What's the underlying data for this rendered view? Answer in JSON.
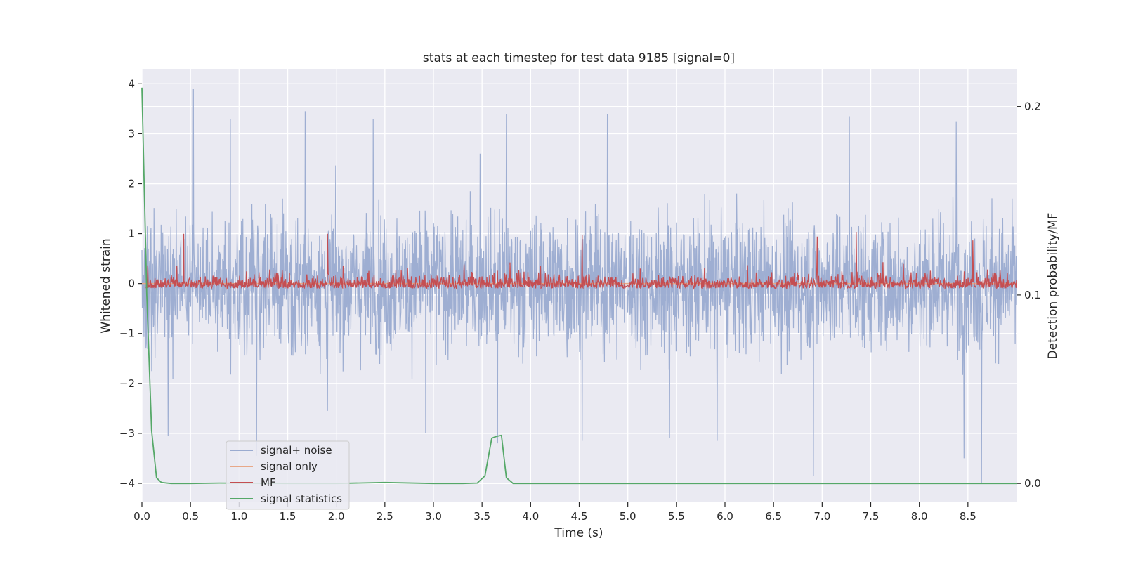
{
  "chart_data": {
    "type": "line",
    "title": "stats at each timestep for test data 9185 [signal=0]",
    "xlabel": "Time (s)",
    "ylabel": "Whitened strain",
    "y2label": "Detection probability/MF",
    "xlim": [
      0.0,
      9.0
    ],
    "ylim": [
      -4.38,
      4.3
    ],
    "y2lim": [
      -0.01,
      0.22
    ],
    "xticks": [
      0.0,
      0.5,
      1.0,
      1.5,
      2.0,
      2.5,
      3.0,
      3.5,
      4.0,
      4.5,
      5.0,
      5.5,
      6.0,
      6.5,
      7.0,
      7.5,
      8.0,
      8.5
    ],
    "xtick_labels": [
      "0.0",
      "0.5",
      "1.0",
      "1.5",
      "2.0",
      "2.5",
      "3.0",
      "3.5",
      "4.0",
      "4.5",
      "5.0",
      "5.5",
      "6.0",
      "6.5",
      "7.0",
      "7.5",
      "8.0",
      "8.5"
    ],
    "yticks": [
      -4,
      -3,
      -2,
      -1,
      0,
      1,
      2,
      3,
      4
    ],
    "ytick_labels": [
      "−4",
      "−3",
      "−2",
      "−1",
      "0",
      "1",
      "2",
      "3",
      "4"
    ],
    "y2ticks": [
      0.0,
      0.1,
      0.2
    ],
    "y2tick_labels": [
      "0.0",
      "0.1",
      "0.2"
    ],
    "grid": true,
    "legend_position": "lower-left",
    "series": [
      {
        "name": "signal+ noise",
        "axis": "left",
        "color": "#9aabd0",
        "kind": "noise",
        "spikes": [
          {
            "x": 0.53,
            "y": 3.9
          },
          {
            "x": 0.91,
            "y": 3.3
          },
          {
            "x": 1.18,
            "y": -3.45
          },
          {
            "x": 1.68,
            "y": 3.45
          },
          {
            "x": 1.91,
            "y": -2.55
          },
          {
            "x": 2.38,
            "y": 3.3
          },
          {
            "x": 2.92,
            "y": -3.0
          },
          {
            "x": 3.48,
            "y": 2.6
          },
          {
            "x": 3.66,
            "y": -3.2
          },
          {
            "x": 3.75,
            "y": 3.4
          },
          {
            "x": 4.53,
            "y": -3.15
          },
          {
            "x": 4.79,
            "y": 3.4
          },
          {
            "x": 5.43,
            "y": -3.1
          },
          {
            "x": 5.92,
            "y": -3.15
          },
          {
            "x": 6.91,
            "y": -3.85
          },
          {
            "x": 7.28,
            "y": 3.35
          },
          {
            "x": 8.46,
            "y": -3.5
          },
          {
            "x": 8.64,
            "y": -4.0
          },
          {
            "x": 8.38,
            "y": 3.25
          },
          {
            "x": 0.27,
            "y": -3.05
          }
        ]
      },
      {
        "name": "signal only",
        "axis": "left",
        "color": "#e8a888",
        "kind": "flat",
        "value": 0.0
      },
      {
        "name": "MF",
        "axis": "right",
        "color": "#c44e52",
        "kind": "band",
        "base": 0.1035,
        "peaks": [
          {
            "x": 0.43,
            "y": 0.1325
          },
          {
            "x": 1.91,
            "y": 0.1325
          },
          {
            "x": 4.53,
            "y": 0.132
          },
          {
            "x": 6.95,
            "y": 0.131
          },
          {
            "x": 7.35,
            "y": 0.1335
          },
          {
            "x": 8.55,
            "y": 0.129
          }
        ]
      },
      {
        "name": "signal statistics",
        "axis": "right",
        "color": "#55a868",
        "kind": "line",
        "x": [
          0.0,
          0.05,
          0.1,
          0.15,
          0.2,
          0.3,
          0.5,
          0.8,
          1.5,
          2.0,
          2.5,
          3.0,
          3.3,
          3.45,
          3.53,
          3.6,
          3.65,
          3.7,
          3.75,
          3.82,
          3.9,
          4.5,
          6.0,
          8.0,
          9.0
        ],
        "y": [
          0.21,
          0.1,
          0.028,
          0.003,
          0.0005,
          0.0,
          0.0,
          0.0002,
          0.0,
          0.0,
          0.0005,
          0.0,
          0.0,
          0.0002,
          0.004,
          0.024,
          0.025,
          0.0255,
          0.003,
          0.0,
          0.0,
          0.0,
          0.0,
          0.0,
          0.0
        ]
      }
    ]
  }
}
